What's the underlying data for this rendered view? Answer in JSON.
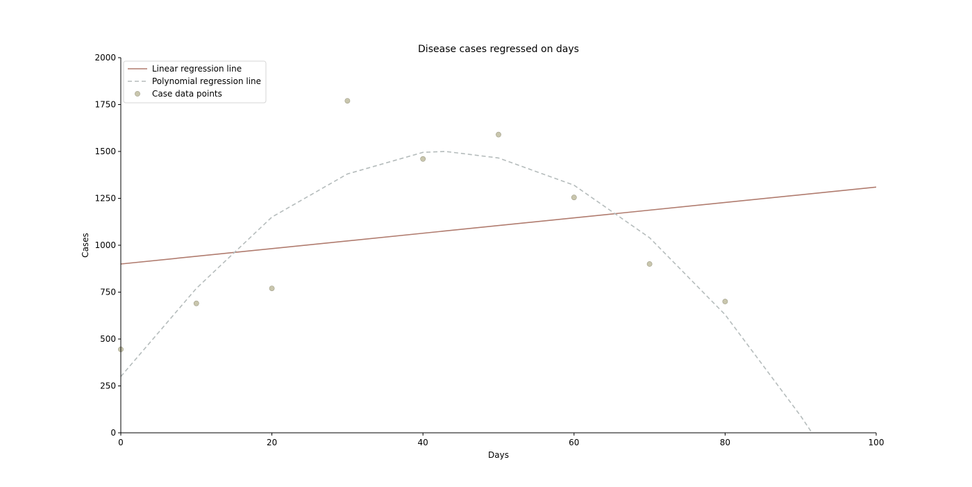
{
  "chart_data": {
    "type": "scatter",
    "title": "Disease cases regressed on days",
    "xlabel": "Days",
    "ylabel": "Cases",
    "xlim": [
      0,
      100
    ],
    "ylim": [
      0,
      2000
    ],
    "xticks": [
      0,
      20,
      40,
      60,
      80,
      100
    ],
    "yticks": [
      0,
      250,
      500,
      750,
      1000,
      1250,
      1500,
      1750,
      2000
    ],
    "grid": false,
    "legend_position": "top-left",
    "series": [
      {
        "name": "Linear regression line",
        "kind": "line",
        "style": "solid",
        "color": "#b07b6e",
        "x": [
          0,
          100
        ],
        "y": [
          900,
          1310
        ]
      },
      {
        "name": "Polynomial regression line",
        "kind": "line",
        "style": "dashed",
        "color": "#b5bcbc",
        "x": [
          0,
          10,
          20,
          30,
          40,
          43,
          50,
          60,
          70,
          80,
          90,
          91.5
        ],
        "y": [
          300,
          770,
          1150,
          1380,
          1495,
          1500,
          1465,
          1320,
          1040,
          630,
          90,
          0
        ]
      },
      {
        "name": "Case data points",
        "kind": "scatter",
        "color": "#c9c6ad",
        "x": [
          0,
          10,
          20,
          30,
          40,
          50,
          60,
          70,
          80
        ],
        "y": [
          445,
          690,
          770,
          1770,
          1460,
          1590,
          1255,
          900,
          700
        ]
      }
    ]
  }
}
